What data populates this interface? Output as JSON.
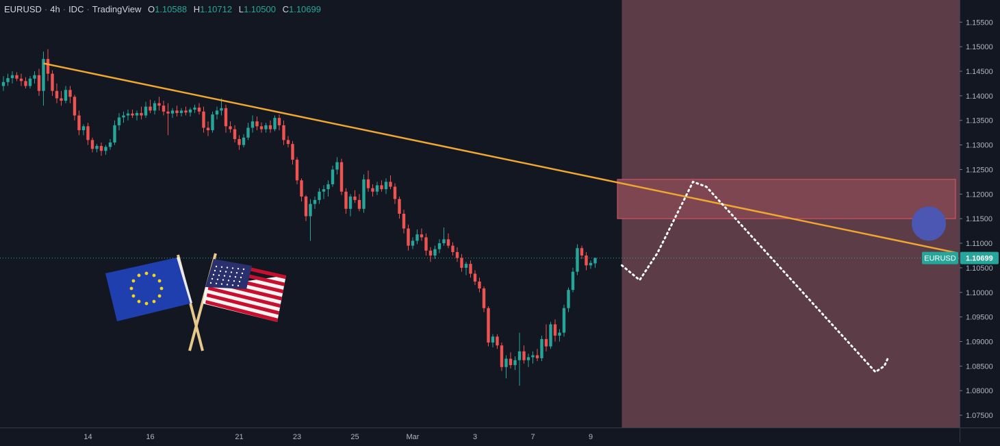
{
  "header": {
    "symbol": "EURUSD",
    "interval": "4h",
    "exchange": "IDC",
    "source": "TradingView",
    "ohlc": [
      {
        "k": "O",
        "v": "1.10588"
      },
      {
        "k": "H",
        "v": "1.10712"
      },
      {
        "k": "L",
        "v": "1.10500"
      },
      {
        "k": "C",
        "v": "1.10699"
      }
    ]
  },
  "colors": {
    "background": "#131722",
    "up": "#26a69a",
    "down": "#ef5350",
    "trendline": "#f0a732",
    "zone_fill": "#5c3d47",
    "resistance_box": "#7e4650",
    "marker": "#4b57b3",
    "price_tag": "#26a69a"
  },
  "chart_data": {
    "type": "candlestick",
    "title": "",
    "xlabel": "",
    "ylabel": "",
    "ylim": [
      1.0725,
      1.1595
    ],
    "y_ticks": [
      "1.15500",
      "1.15000",
      "1.14500",
      "1.14000",
      "1.13500",
      "1.13000",
      "1.12500",
      "1.12000",
      "1.11500",
      "1.11000",
      "1.10500",
      "1.10000",
      "1.09500",
      "1.09000",
      "1.08500",
      "1.08000",
      "1.07500"
    ],
    "x_ticks": [
      {
        "label": "14",
        "bar": 19
      },
      {
        "label": "16",
        "bar": 33
      },
      {
        "label": "21",
        "bar": 53
      },
      {
        "label": "23",
        "bar": 66
      },
      {
        "label": "25",
        "bar": 79
      },
      {
        "label": "Mar",
        "bar": 92
      },
      {
        "label": "3",
        "bar": 106
      },
      {
        "label": "7",
        "bar": 119
      },
      {
        "label": "9",
        "bar": 132
      }
    ],
    "bar_count_total": 214,
    "candles": [
      [
        1.142,
        1.144,
        1.141,
        1.1428
      ],
      [
        1.1428,
        1.1445,
        1.142,
        1.1436
      ],
      [
        1.1436,
        1.145,
        1.1425,
        1.1442
      ],
      [
        1.1442,
        1.1448,
        1.143,
        1.1435
      ],
      [
        1.1435,
        1.1445,
        1.142,
        1.143
      ],
      [
        1.143,
        1.1438,
        1.1415,
        1.142
      ],
      [
        1.142,
        1.144,
        1.1415,
        1.1435
      ],
      [
        1.1435,
        1.145,
        1.1425,
        1.1442
      ],
      [
        1.1442,
        1.1455,
        1.14,
        1.141
      ],
      [
        1.141,
        1.149,
        1.138,
        1.1475
      ],
      [
        1.1475,
        1.1495,
        1.143,
        1.1445
      ],
      [
        1.1445,
        1.1452,
        1.14,
        1.141
      ],
      [
        1.141,
        1.1425,
        1.1385,
        1.1395
      ],
      [
        1.1395,
        1.141,
        1.138,
        1.139
      ],
      [
        1.139,
        1.142,
        1.1385,
        1.1412
      ],
      [
        1.1412,
        1.142,
        1.1385,
        1.1398
      ],
      [
        1.1398,
        1.1402,
        1.135,
        1.136
      ],
      [
        1.136,
        1.137,
        1.132,
        1.133
      ],
      [
        1.133,
        1.1342,
        1.132,
        1.1338
      ],
      [
        1.1338,
        1.1345,
        1.13,
        1.131
      ],
      [
        1.131,
        1.1315,
        1.1285,
        1.1292
      ],
      [
        1.1292,
        1.1302,
        1.1285,
        1.1298
      ],
      [
        1.1298,
        1.1305,
        1.1278,
        1.1288
      ],
      [
        1.1288,
        1.13,
        1.128,
        1.1296
      ],
      [
        1.1296,
        1.1312,
        1.129,
        1.1305
      ],
      [
        1.1305,
        1.135,
        1.13,
        1.134
      ],
      [
        1.134,
        1.1365,
        1.133,
        1.1356
      ],
      [
        1.1356,
        1.1368,
        1.1345,
        1.136
      ],
      [
        1.136,
        1.1372,
        1.135,
        1.1364
      ],
      [
        1.1364,
        1.1372,
        1.1355,
        1.136
      ],
      [
        1.136,
        1.137,
        1.135,
        1.1365
      ],
      [
        1.1365,
        1.1378,
        1.1352,
        1.136
      ],
      [
        1.136,
        1.1388,
        1.1355,
        1.1378
      ],
      [
        1.1378,
        1.1392,
        1.1365,
        1.137
      ],
      [
        1.137,
        1.139,
        1.1362,
        1.1385
      ],
      [
        1.1385,
        1.1398,
        1.137,
        1.138
      ],
      [
        1.138,
        1.139,
        1.136,
        1.1368
      ],
      [
        1.1368,
        1.1385,
        1.132,
        1.1364
      ],
      [
        1.1364,
        1.1375,
        1.1355,
        1.137
      ],
      [
        1.137,
        1.138,
        1.1358,
        1.1365
      ],
      [
        1.1365,
        1.1375,
        1.1358,
        1.137
      ],
      [
        1.137,
        1.1378,
        1.136,
        1.1366
      ],
      [
        1.1366,
        1.1376,
        1.1358,
        1.1372
      ],
      [
        1.1372,
        1.1382,
        1.1365,
        1.1376
      ],
      [
        1.1376,
        1.1385,
        1.1362,
        1.1368
      ],
      [
        1.1368,
        1.1378,
        1.1325,
        1.1335
      ],
      [
        1.1335,
        1.1348,
        1.1318,
        1.133
      ],
      [
        1.133,
        1.1368,
        1.1325,
        1.1362
      ],
      [
        1.1362,
        1.1378,
        1.1352,
        1.137
      ],
      [
        1.137,
        1.1395,
        1.136,
        1.1375
      ],
      [
        1.1375,
        1.1382,
        1.1325,
        1.1338
      ],
      [
        1.1338,
        1.1348,
        1.1325,
        1.1332
      ],
      [
        1.1332,
        1.134,
        1.1305,
        1.1312
      ],
      [
        1.1312,
        1.132,
        1.129,
        1.13
      ],
      [
        1.13,
        1.1322,
        1.1295,
        1.1315
      ],
      [
        1.1315,
        1.1345,
        1.131,
        1.1335
      ],
      [
        1.1335,
        1.136,
        1.1325,
        1.1348
      ],
      [
        1.1348,
        1.1358,
        1.133,
        1.1338
      ],
      [
        1.1338,
        1.1346,
        1.1325,
        1.1332
      ],
      [
        1.1332,
        1.1345,
        1.1325,
        1.134
      ],
      [
        1.134,
        1.135,
        1.1325,
        1.1332
      ],
      [
        1.1332,
        1.136,
        1.1328,
        1.1355
      ],
      [
        1.1355,
        1.1362,
        1.133,
        1.134
      ],
      [
        1.134,
        1.135,
        1.13,
        1.131
      ],
      [
        1.131,
        1.1318,
        1.1295,
        1.1302
      ],
      [
        1.1302,
        1.1308,
        1.126,
        1.127
      ],
      [
        1.127,
        1.1275,
        1.122,
        1.1228
      ],
      [
        1.1228,
        1.1232,
        1.1185,
        1.1195
      ],
      [
        1.1195,
        1.1198,
        1.1145,
        1.1155
      ],
      [
        1.1155,
        1.119,
        1.1105,
        1.118
      ],
      [
        1.118,
        1.1195,
        1.117,
        1.1188
      ],
      [
        1.1188,
        1.1212,
        1.118,
        1.1205
      ],
      [
        1.1205,
        1.1218,
        1.119,
        1.121
      ],
      [
        1.121,
        1.1228,
        1.1195,
        1.122
      ],
      [
        1.122,
        1.1258,
        1.1215,
        1.125
      ],
      [
        1.125,
        1.1275,
        1.124,
        1.1265
      ],
      [
        1.1265,
        1.1272,
        1.1198,
        1.1205
      ],
      [
        1.1205,
        1.1212,
        1.116,
        1.117
      ],
      [
        1.117,
        1.12,
        1.1155,
        1.1195
      ],
      [
        1.1195,
        1.1208,
        1.1182,
        1.1188
      ],
      [
        1.1188,
        1.12,
        1.1165,
        1.117
      ],
      [
        1.117,
        1.124,
        1.1162,
        1.123
      ],
      [
        1.123,
        1.1248,
        1.1205,
        1.1212
      ],
      [
        1.1212,
        1.122,
        1.1195,
        1.1205
      ],
      [
        1.1205,
        1.1225,
        1.1198,
        1.1218
      ],
      [
        1.1218,
        1.1228,
        1.1205,
        1.121
      ],
      [
        1.121,
        1.1232,
        1.12,
        1.1225
      ],
      [
        1.1225,
        1.1238,
        1.121,
        1.1215
      ],
      [
        1.1215,
        1.1222,
        1.118,
        1.119
      ],
      [
        1.119,
        1.1195,
        1.115,
        1.116
      ],
      [
        1.116,
        1.1168,
        1.112,
        1.113
      ],
      [
        1.113,
        1.1138,
        1.1085,
        1.1095
      ],
      [
        1.1095,
        1.1112,
        1.1088,
        1.1105
      ],
      [
        1.1105,
        1.1128,
        1.1098,
        1.1118
      ],
      [
        1.1118,
        1.113,
        1.1105,
        1.1112
      ],
      [
        1.1112,
        1.112,
        1.1075,
        1.1085
      ],
      [
        1.1085,
        1.1092,
        1.1062,
        1.1075
      ],
      [
        1.1075,
        1.1095,
        1.1068,
        1.1088
      ],
      [
        1.1088,
        1.1108,
        1.108,
        1.11
      ],
      [
        1.11,
        1.1132,
        1.1095,
        1.1108
      ],
      [
        1.1108,
        1.112,
        1.109,
        1.1095
      ],
      [
        1.1095,
        1.1102,
        1.1075,
        1.1082
      ],
      [
        1.1082,
        1.1092,
        1.1062,
        1.107
      ],
      [
        1.107,
        1.1078,
        1.1042,
        1.105
      ],
      [
        1.105,
        1.1062,
        1.1035,
        1.1058
      ],
      [
        1.1058,
        1.1065,
        1.103,
        1.1038
      ],
      [
        1.1038,
        1.1045,
        1.1015,
        1.1022
      ],
      [
        1.1022,
        1.103,
        1.1,
        1.1008
      ],
      [
        1.1008,
        1.1012,
        1.096,
        1.0968
      ],
      [
        1.0968,
        1.0972,
        1.089,
        1.0898
      ],
      [
        1.0898,
        1.0915,
        1.0888,
        1.091
      ],
      [
        1.091,
        1.0915,
        1.0885,
        1.0892
      ],
      [
        1.0892,
        1.0898,
        1.084,
        1.0848
      ],
      [
        1.0848,
        1.0872,
        1.0825,
        1.0865
      ],
      [
        1.0865,
        1.0878,
        1.0845,
        1.0852
      ],
      [
        1.0852,
        1.087,
        1.0842,
        1.0862
      ],
      [
        1.0862,
        1.0918,
        1.081,
        1.088
      ],
      [
        1.088,
        1.0892,
        1.0855,
        1.0862
      ],
      [
        1.0862,
        1.0875,
        1.0848,
        1.0868
      ],
      [
        1.0868,
        1.088,
        1.0855,
        1.0872
      ],
      [
        1.0872,
        1.0885,
        1.086,
        1.0866
      ],
      [
        1.0866,
        1.0912,
        1.086,
        1.0905
      ],
      [
        1.0905,
        1.0935,
        1.088,
        1.089
      ],
      [
        1.089,
        1.094,
        1.0885,
        1.0935
      ],
      [
        1.0935,
        1.0945,
        1.09,
        1.0912
      ],
      [
        1.0912,
        1.0925,
        1.09,
        1.0918
      ],
      [
        1.0918,
        1.0975,
        1.091,
        1.0968
      ],
      [
        1.0968,
        1.101,
        1.096,
        1.1005
      ],
      [
        1.1005,
        1.105,
        1.1,
        1.1042
      ],
      [
        1.1042,
        1.1098,
        1.1035,
        1.109
      ],
      [
        1.109,
        1.1095,
        1.1068,
        1.1075
      ],
      [
        1.1075,
        1.1082,
        1.1045,
        1.1055
      ],
      [
        1.1055,
        1.1065,
        1.1048,
        1.106
      ],
      [
        1.1059,
        1.1071,
        1.105,
        1.107
      ]
    ],
    "last_price": {
      "label": "EURUSD",
      "value": "1.10699",
      "price": 1.10699
    },
    "annotations": {
      "trendline": {
        "start": {
          "bar": 9,
          "price": 1.1466
        },
        "end": {
          "bar": 214,
          "price": 1.1081
        }
      },
      "shaded_region": {
        "from_bar": 139
      },
      "resistance_box": {
        "from_bar": 138,
        "to_bar": 214,
        "price_top": 1.123,
        "price_bottom": 1.115
      },
      "marker": {
        "bar": 208,
        "price": 1.114
      },
      "projection_path": [
        {
          "bar": 139,
          "price": 1.1055
        },
        {
          "bar": 143,
          "price": 1.1025
        },
        {
          "bar": 147,
          "price": 1.108
        },
        {
          "bar": 155,
          "price": 1.1225
        },
        {
          "bar": 158,
          "price": 1.1215
        },
        {
          "bar": 196,
          "price": 1.0838
        },
        {
          "bar": 198,
          "price": 1.085
        },
        {
          "bar": 199,
          "price": 1.087
        }
      ]
    }
  },
  "flags": [
    {
      "name": "eu-flag",
      "caption": ""
    },
    {
      "name": "us-flag",
      "caption": ""
    }
  ]
}
